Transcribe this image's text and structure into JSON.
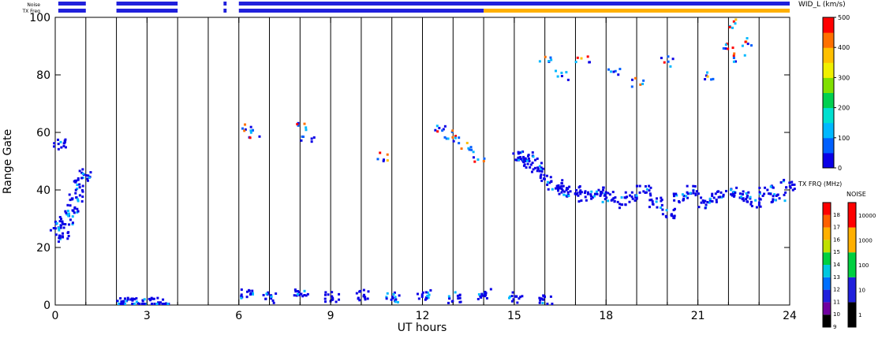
{
  "chart_data": {
    "type": "heatmap",
    "title": "",
    "xlabel": "UT hours",
    "ylabel": "Range Gate",
    "xlim": [
      0,
      24
    ],
    "ylim": [
      0,
      100
    ],
    "x_ticks": [
      "0",
      "3",
      "6",
      "9",
      "12",
      "15",
      "18",
      "21",
      "24"
    ],
    "y_ticks": [
      "0",
      "20",
      "40",
      "60",
      "80",
      "100"
    ],
    "x_tick_values": [
      0,
      3,
      6,
      9,
      12,
      15,
      18,
      21,
      24
    ],
    "y_tick_values": [
      0,
      20,
      40,
      60,
      80,
      100
    ],
    "scan_boundaries_ut": [
      1,
      2,
      3,
      4,
      5,
      6,
      7,
      8,
      9,
      10,
      11,
      12,
      13,
      14,
      15,
      16,
      17,
      18,
      19,
      20,
      21,
      22,
      23
    ],
    "data_gaps_ut": [
      [
        1,
        2
      ],
      [
        4,
        6
      ]
    ],
    "status_bars": {
      "noise_label": "Noise",
      "txfreq_label": "TX Freq",
      "noise_segments": [
        [
          0.1,
          1.0
        ],
        [
          2.0,
          4.0
        ],
        [
          5.5,
          5.6
        ],
        [
          6.0,
          24.0
        ]
      ],
      "txfreq_segments": [
        {
          "from": 0.1,
          "to": 1.0,
          "color": "#2020dc"
        },
        {
          "from": 2.0,
          "to": 4.0,
          "color": "#2020dc"
        },
        {
          "from": 5.5,
          "to": 5.6,
          "color": "#2020dc"
        },
        {
          "from": 6.0,
          "to": 14.0,
          "color": "#2020dc"
        },
        {
          "from": 14.0,
          "to": 24.0,
          "color": "#ffb000"
        }
      ]
    },
    "series": [
      {
        "name": "main_band",
        "color_scale": "width",
        "points": [
          [
            0.05,
            28
          ],
          [
            0.2,
            24
          ],
          [
            0.35,
            30
          ],
          [
            0.5,
            34
          ],
          [
            0.65,
            38
          ],
          [
            0.8,
            42
          ],
          [
            0.9,
            46
          ],
          [
            0.1,
            56
          ],
          [
            15.05,
            52
          ],
          [
            15.3,
            50
          ],
          [
            15.5,
            52
          ],
          [
            15.7,
            48
          ],
          [
            16.0,
            44
          ],
          [
            16.3,
            42
          ],
          [
            16.6,
            40
          ],
          [
            16.9,
            40
          ],
          [
            17.3,
            38
          ],
          [
            17.7,
            40
          ],
          [
            18.0,
            38
          ],
          [
            18.4,
            36
          ],
          [
            18.8,
            38
          ],
          [
            19.2,
            40
          ],
          [
            19.6,
            36
          ],
          [
            20.0,
            32
          ],
          [
            20.4,
            38
          ],
          [
            20.8,
            40
          ],
          [
            21.2,
            36
          ],
          [
            21.6,
            38
          ],
          [
            22.0,
            40
          ],
          [
            22.4,
            38
          ],
          [
            22.8,
            36
          ],
          [
            23.2,
            40
          ],
          [
            23.6,
            38
          ],
          [
            23.9,
            42
          ]
        ]
      },
      {
        "name": "upper_echoes",
        "color_scale": "width",
        "points": [
          [
            6.3,
            62
          ],
          [
            6.5,
            60
          ],
          [
            8.0,
            62
          ],
          [
            8.2,
            58
          ],
          [
            10.6,
            52
          ],
          [
            12.5,
            62
          ],
          [
            12.8,
            60
          ],
          [
            13.1,
            58
          ],
          [
            13.4,
            56
          ],
          [
            13.8,
            52
          ],
          [
            16.0,
            85
          ],
          [
            16.5,
            80
          ],
          [
            17.2,
            86
          ],
          [
            18.2,
            82
          ],
          [
            19.0,
            78
          ],
          [
            20.0,
            85
          ],
          [
            21.3,
            80
          ],
          [
            21.9,
            90
          ],
          [
            22.1,
            98
          ],
          [
            22.3,
            86
          ],
          [
            22.6,
            92
          ]
        ]
      },
      {
        "name": "near_range",
        "color_scale": "width",
        "points": [
          [
            2.1,
            1
          ],
          [
            2.5,
            1
          ],
          [
            3.0,
            1
          ],
          [
            3.5,
            1
          ],
          [
            6.2,
            4
          ],
          [
            7.0,
            3
          ],
          [
            8.0,
            4
          ],
          [
            9.0,
            3
          ],
          [
            10.0,
            4
          ],
          [
            11.0,
            3
          ],
          [
            12.0,
            4
          ],
          [
            13.0,
            3
          ],
          [
            14.0,
            4
          ],
          [
            15.0,
            3
          ],
          [
            16.0,
            2
          ]
        ]
      }
    ],
    "colorbars": [
      {
        "name": "width",
        "label": "WID_L (km/s)",
        "ticks": [
          "0",
          "100",
          "200",
          "300",
          "400",
          "500"
        ],
        "tick_values": [
          0,
          100,
          200,
          300,
          400,
          500
        ]
      },
      {
        "name": "txfreq",
        "label": "TX FRQ (MHz)",
        "ticks": [
          "9",
          "10",
          "11",
          "12",
          "13",
          "14",
          "15",
          "16",
          "17",
          "18"
        ]
      },
      {
        "name": "noise",
        "label": "NOISE",
        "ticks": [
          "1",
          "10",
          "100",
          "1000",
          "10000"
        ]
      }
    ],
    "grid": false
  },
  "colors": {
    "scale": [
      "#0a00e6",
      "#0060ff",
      "#00b8ff",
      "#00e0d0",
      "#00d050",
      "#80e000",
      "#f0f000",
      "#ffc000",
      "#ff7000",
      "#ff0000"
    ],
    "txfreq_steps": [
      "#000000",
      "#7000a0",
      "#2020dc",
      "#0070ff",
      "#00c8e0",
      "#00d040",
      "#c0e000",
      "#ffb000",
      "#ff6000",
      "#ff0000"
    ],
    "noise_steps": [
      "#000000",
      "#2020dc",
      "#00d040",
      "#ffb000",
      "#ff0000"
    ]
  }
}
